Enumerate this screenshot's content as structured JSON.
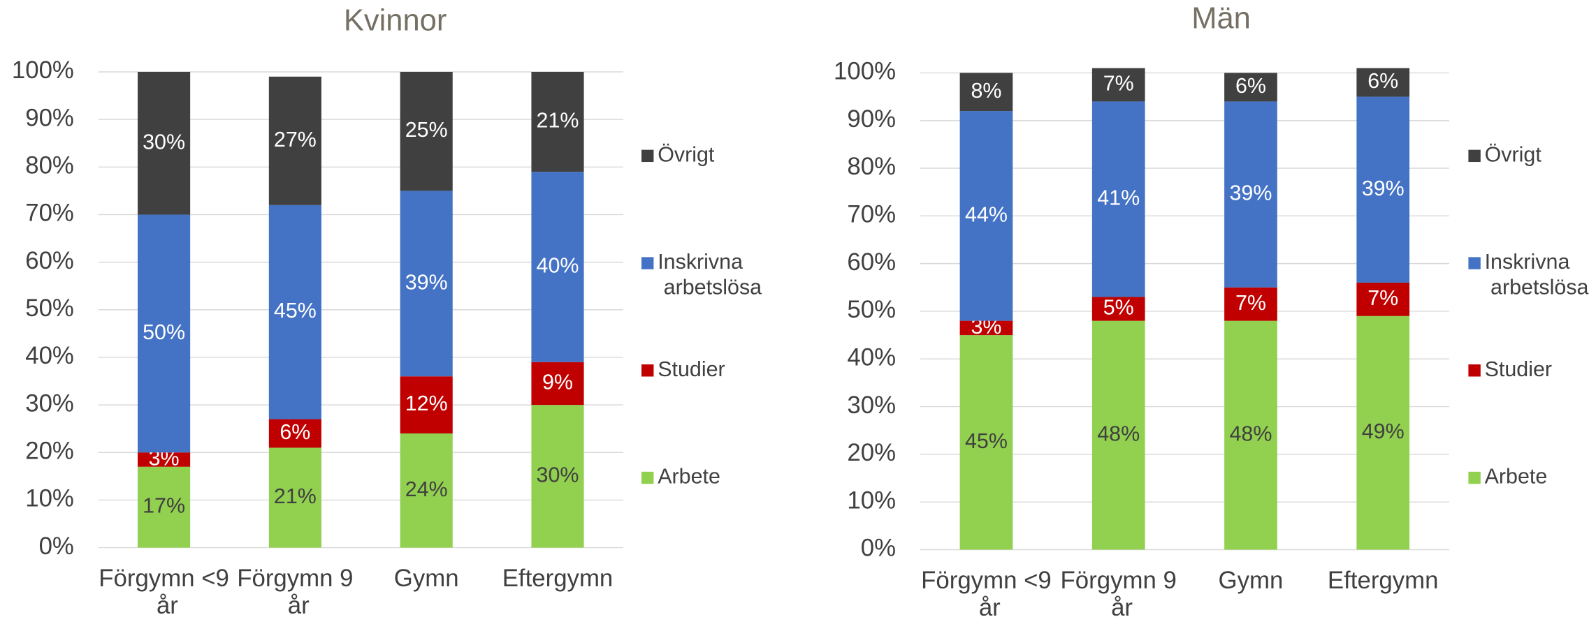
{
  "chart_data": [
    {
      "type": "stacked_bar",
      "title": "Kvinnor",
      "categories": [
        "Förgymn <9 år",
        "Förgymn 9 år",
        "Gymn",
        "Eftergymn"
      ],
      "series": [
        {
          "name": "Arbete",
          "color": "#92d050",
          "values": [
            17,
            21,
            24,
            30
          ],
          "value_labels": [
            "17%",
            "21%",
            "24%",
            "30%"
          ]
        },
        {
          "name": "Studier",
          "color": "#c00000",
          "values": [
            3,
            6,
            12,
            9
          ],
          "value_labels": [
            "3%",
            "6%",
            "12%",
            "9%"
          ]
        },
        {
          "name": "Inskrivna arbetslösa",
          "color": "#4472c4",
          "values": [
            50,
            45,
            39,
            40
          ],
          "value_labels": [
            "50%",
            "45%",
            "39%",
            "40%"
          ]
        },
        {
          "name": "Övrigt",
          "color": "#404040",
          "values": [
            30,
            27,
            25,
            21
          ],
          "value_labels": [
            "30%",
            "27%",
            "25%",
            "21%"
          ]
        }
      ],
      "ylim": [
        0,
        100
      ],
      "yticks": [
        {
          "value": 0,
          "label": "0%"
        },
        {
          "value": 10,
          "label": "10%"
        },
        {
          "value": 20,
          "label": "20%"
        },
        {
          "value": 30,
          "label": "30%"
        },
        {
          "value": 40,
          "label": "40%"
        },
        {
          "value": 50,
          "label": "50%"
        },
        {
          "value": 60,
          "label": "60%"
        },
        {
          "value": 70,
          "label": "70%"
        },
        {
          "value": 80,
          "label": "80%"
        },
        {
          "value": 90,
          "label": "90%"
        },
        {
          "value": 100,
          "label": "100%"
        }
      ],
      "grid": true,
      "legend": "right"
    },
    {
      "type": "stacked_bar",
      "title": "Män",
      "categories": [
        "Förgymn <9 år",
        "Förgymn 9 år",
        "Gymn",
        "Eftergymn"
      ],
      "series": [
        {
          "name": "Arbete",
          "color": "#92d050",
          "values": [
            45,
            48,
            48,
            49
          ],
          "value_labels": [
            "45%",
            "48%",
            "48%",
            "49%"
          ]
        },
        {
          "name": "Studier",
          "color": "#c00000",
          "values": [
            3,
            5,
            7,
            7
          ],
          "value_labels": [
            "3%",
            "5%",
            "7%",
            "7%"
          ]
        },
        {
          "name": "Inskrivna arbetslösa",
          "color": "#4472c4",
          "values": [
            44,
            41,
            39,
            39
          ],
          "value_labels": [
            "44%",
            "41%",
            "39%",
            "39%"
          ]
        },
        {
          "name": "Övrigt",
          "color": "#404040",
          "values": [
            8,
            7,
            6,
            6
          ],
          "value_labels": [
            "8%",
            "7%",
            "6%",
            "6%"
          ]
        }
      ],
      "ylim": [
        0,
        100
      ],
      "yticks": [
        {
          "value": 0,
          "label": "0%"
        },
        {
          "value": 10,
          "label": "10%"
        },
        {
          "value": 20,
          "label": "20%"
        },
        {
          "value": 30,
          "label": "30%"
        },
        {
          "value": 40,
          "label": "40%"
        },
        {
          "value": 50,
          "label": "50%"
        },
        {
          "value": 60,
          "label": "60%"
        },
        {
          "value": 70,
          "label": "70%"
        },
        {
          "value": 80,
          "label": "80%"
        },
        {
          "value": 90,
          "label": "90%"
        },
        {
          "value": 100,
          "label": "100%"
        }
      ],
      "grid": true,
      "legend": "right"
    }
  ]
}
